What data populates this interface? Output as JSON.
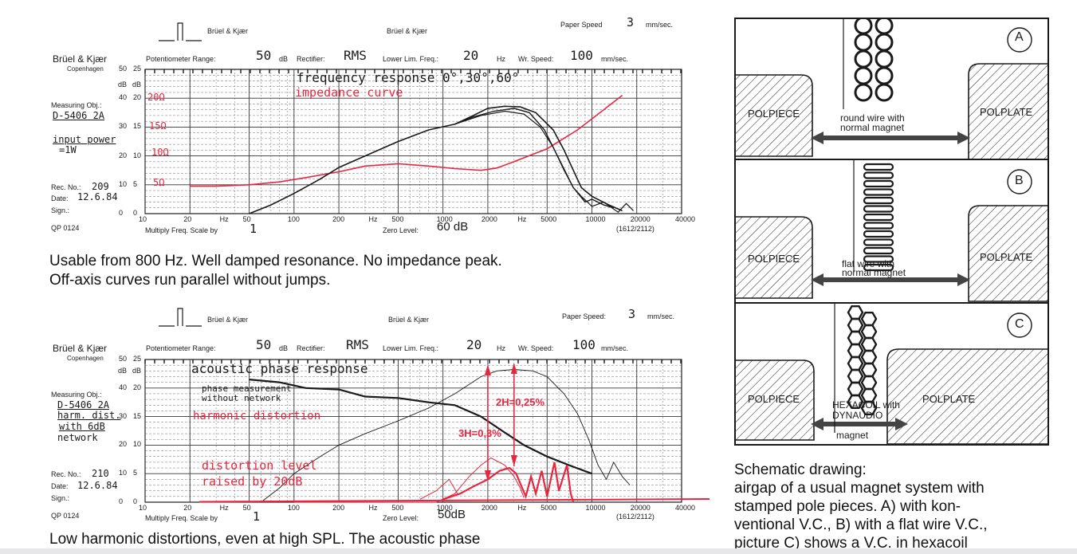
{
  "chart1": {
    "brand": "Brüel & Kjær",
    "brand_sub": "Copenhagen",
    "header_brand_1": "Brüel & Kjær",
    "header_brand_2": "Brüel & Kjær",
    "paper_speed_label": "Paper Speed",
    "paper_speed_value": "3",
    "paper_speed_unit": "mm/sec.",
    "pot_range_label": "Potentiometer Range:",
    "pot_range_value": "50",
    "pot_range_unit": "dB",
    "rectifier_label": "Rectifier:",
    "rectifier_value": "RMS",
    "lower_lim_label": "Lower Lim. Freq.:",
    "lower_lim_value": "20",
    "lower_lim_unit": "Hz",
    "wr_speed_label": "Wr.  Speed:",
    "wr_speed_value": "100",
    "wr_speed_unit": "mm/sec.",
    "measuring_obj_label": "Measuring Obj.:",
    "measuring_obj_value": "D-5406 2A",
    "note_1": "input power",
    "note_2": "=1W",
    "rec_no_label": "Rec. No.:",
    "rec_no_value": "209",
    "date_label": "Date:",
    "date_value": "12.6.84",
    "sign_label": "Sign.:",
    "form_code": "QP 0124",
    "multiply_label": "Multiply Freq. Scale by",
    "multiply_value": "1",
    "zero_level_label": "Zero Level:",
    "zero_level_value": "60 dB",
    "chart_code": "(1612/2112)",
    "title_annotation": "frequency response 0°,30°,60°",
    "impedance_annotation": "impedance curve",
    "ohm_labels": [
      "20Ω",
      "15Ω",
      "10Ω",
      "5Ω"
    ],
    "y_left_labels": [
      "50",
      "40",
      "30",
      "20",
      "10",
      "0"
    ],
    "y_right_labels": [
      "25",
      "20",
      "15",
      "10",
      "5",
      "0"
    ],
    "db_label": "dB",
    "x_labels": [
      "10",
      "20",
      "Hz",
      "50",
      "100",
      "200",
      "Hz",
      "500",
      "1000",
      "2000",
      "Hz",
      "5000",
      "10000",
      "20000",
      "40000"
    ]
  },
  "caption1": {
    "line1": "Usable from 800 Hz. Well damped resonance. No impedance peak.",
    "line2": "Off-axis curves run parallel without jumps."
  },
  "chart2": {
    "brand": "Brüel & Kjær",
    "brand_sub": "Copenhagen",
    "header_brand_1": "Brüel & Kjær",
    "header_brand_2": "Brüel & Kjær",
    "paper_speed_label": "Paper Speed:",
    "paper_speed_value": "3",
    "paper_speed_unit": "mm/sec.",
    "pot_range_label": "Potentiometer Range:",
    "pot_range_value": "50",
    "pot_range_unit": "dB",
    "rectifier_label": "Rectifier:",
    "rectifier_value": "RMS",
    "lower_lim_label": "Lower Lim. Freq.:",
    "lower_lim_value": "20",
    "lower_lim_unit": "Hz",
    "wr_speed_label": "Wr.  Speed:",
    "wr_speed_value": "100",
    "wr_speed_unit": "mm/sec.",
    "measuring_obj_label": "Measuring Obj.:",
    "measuring_obj_value": "D-5406 2A",
    "note_1": "harm. dist.",
    "note_2": "with 6dB",
    "note_3": "network",
    "rec_no_label": "Rec. No.:",
    "rec_no_value": "210",
    "date_label": "Date:",
    "date_value": "12.6.84",
    "sign_label": "Sign.:",
    "form_code": "QP 0124",
    "multiply_label": "Multiply Freq. Scale by",
    "multiply_value": "1",
    "zero_level_label": "Zero Level:",
    "zero_level_value": "50dB",
    "chart_code": "(1612/2112)",
    "title_annotation": "acoustic phase response",
    "phase_note_1": "phase measurement",
    "phase_note_2": "without network",
    "harm_annotation": "harmonic distortion",
    "dist_level_1": "distortion level",
    "dist_level_2": "raised by 20dB",
    "h2_annotation": "2H=0,25%",
    "h3_annotation": "3H=0,3%",
    "y_left_labels": [
      "50",
      "40",
      "30",
      "20",
      "10",
      "0"
    ],
    "y_right_labels": [
      "25",
      "20",
      "15",
      "10",
      "5",
      "0"
    ],
    "db_label": "dB",
    "x_labels": [
      "10",
      "20",
      "Hz",
      "50",
      "100",
      "200",
      "Hz",
      "500",
      "1000",
      "2000",
      "Hz",
      "5000",
      "10000",
      "20000",
      "40000"
    ]
  },
  "caption2": {
    "line1": "Low harmonic distortions, even at high SPL. The acoustic phase"
  },
  "schematic": {
    "panels": [
      {
        "letter": "A",
        "left": "POLPIECE",
        "right": "POLPLATE",
        "desc_1": "round wire with",
        "desc_2": "normal magnet"
      },
      {
        "letter": "B",
        "left": "POLPIECE",
        "right": "POLPLATE",
        "desc_1": "flat wire with",
        "desc_2": "normal magnet"
      },
      {
        "letter": "C",
        "left": "POLPIECE",
        "right": "POLPLATE",
        "desc_1": "HEXACOIL with",
        "desc_2": "DYNAUDIO",
        "desc_3": "magnet"
      }
    ],
    "caption_1": "Schematic drawing:",
    "caption_2": "airgap of a usual magnet system with",
    "caption_3": "stamped pole pieces. A) with kon-",
    "caption_4": "ventional V.C., B) with a flat wire V.C.,",
    "caption_5": "picture C) shows a V.C. in hexacoil"
  },
  "colors": {
    "ink": "#1a1a1a",
    "red": "#e8263f",
    "grid": "#333333"
  }
}
